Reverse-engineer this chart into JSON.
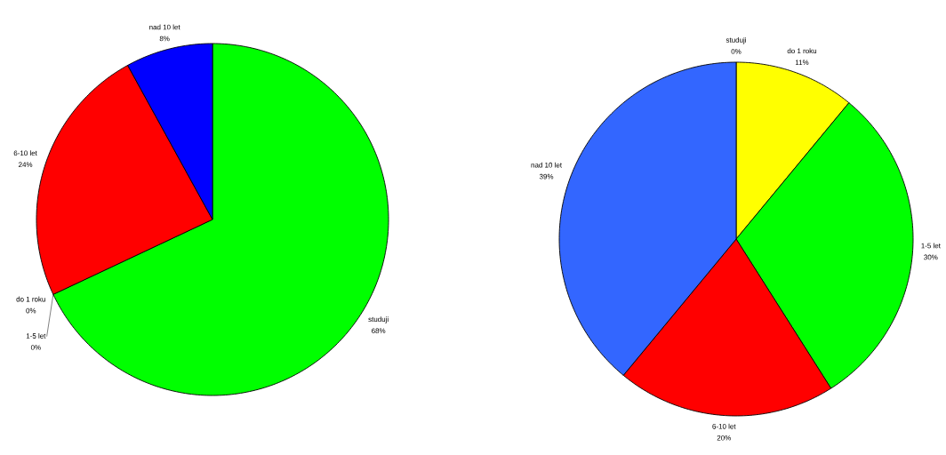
{
  "chart_data": [
    {
      "type": "pie",
      "categories": [
        "studuji",
        "do 1 roku",
        "1-5 let",
        "6-10 let",
        "nad 10 let"
      ],
      "values": [
        68,
        0,
        0,
        24,
        8
      ],
      "value_labels": [
        "68%",
        "0%",
        "0%",
        "24%",
        "8%"
      ],
      "colors": [
        "#00ff00",
        "#ffff00",
        "#00ff00",
        "#ff0000",
        "#0000ff"
      ]
    },
    {
      "type": "pie",
      "categories": [
        "do 1 roku",
        "1-5 let",
        "6-10 let",
        "nad 10 let",
        "studuji"
      ],
      "values": [
        11,
        30,
        20,
        39,
        0
      ],
      "value_labels": [
        "11%",
        "30%",
        "20%",
        "39%",
        "0%"
      ],
      "colors": [
        "#ffff00",
        "#00ff00",
        "#ff0000",
        "#3366ff",
        "#00ffff"
      ]
    }
  ]
}
